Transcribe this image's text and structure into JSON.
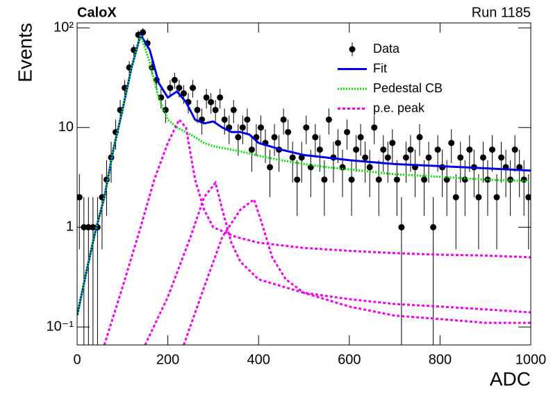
{
  "chart_data": {
    "type": "line",
    "title": "CaloX",
    "subtitle": "Run 1185",
    "x_label": "ADC",
    "y_label": "Events",
    "log_y": true,
    "xlim": [
      0,
      1000
    ],
    "ylim": [
      0.066,
      112
    ],
    "xticks": [
      0,
      200,
      400,
      600,
      800,
      1000
    ],
    "yticks": [
      {
        "value": 0.1,
        "label": "10⁻¹"
      },
      1,
      10,
      {
        "value": 100,
        "label": "10²"
      }
    ],
    "legend": "top-right",
    "series": [
      {
        "name": "Data",
        "color": "#000000",
        "kind": "points",
        "x": [
          5,
          15,
          25,
          35,
          45,
          55,
          65,
          75,
          85,
          95,
          105,
          115,
          125,
          135,
          145,
          155,
          165,
          175,
          185,
          195,
          205,
          215,
          225,
          235,
          245,
          255,
          265,
          275,
          285,
          295,
          305,
          315,
          325,
          335,
          345,
          355,
          365,
          375,
          385,
          395,
          405,
          415,
          425,
          435,
          445,
          455,
          465,
          475,
          485,
          495,
          505,
          515,
          525,
          535,
          545,
          555,
          565,
          575,
          585,
          595,
          605,
          615,
          625,
          635,
          645,
          655,
          665,
          675,
          685,
          695,
          705,
          715,
          725,
          735,
          745,
          755,
          765,
          775,
          785,
          795,
          805,
          815,
          825,
          835,
          845,
          855,
          865,
          875,
          885,
          895,
          905,
          915,
          925,
          935,
          945,
          955,
          965,
          975,
          985,
          995
        ],
        "values": [
          2,
          1,
          1,
          1,
          1,
          2,
          3,
          5,
          9,
          15,
          25,
          40,
          60,
          85,
          90,
          70,
          40,
          30,
          20,
          15,
          25,
          30,
          25,
          22,
          18,
          25,
          15,
          12,
          20,
          18,
          15,
          20,
          12,
          10,
          15,
          8,
          10,
          12,
          6,
          8,
          10,
          7,
          4,
          8,
          6,
          12,
          9,
          5,
          3,
          5,
          10,
          4,
          8,
          6,
          3,
          12,
          5,
          7,
          4,
          9,
          3,
          6,
          8,
          5,
          4,
          10,
          3,
          6,
          5,
          7,
          3,
          1,
          5,
          6,
          4,
          8,
          3,
          5,
          1,
          6,
          4,
          3,
          7,
          2,
          5,
          3,
          6,
          4,
          2,
          5,
          3,
          6,
          2,
          5,
          4,
          3,
          6,
          4,
          3,
          2
        ],
        "errors": [
          1.4,
          1,
          1,
          1,
          1,
          1.4,
          1.7,
          2.2,
          3,
          3.9,
          5,
          6.3,
          7.7,
          9.2,
          9.5,
          8.4,
          6.3,
          5.5,
          4.5,
          3.9,
          5,
          5.5,
          5,
          4.7,
          4.2,
          5,
          3.9,
          3.5,
          4.5,
          4.2,
          3.9,
          4.5,
          3.5,
          3.2,
          3.9,
          2.8,
          3.2,
          3.5,
          2.4,
          2.8,
          3.2,
          2.6,
          2,
          2.8,
          2.4,
          3.5,
          3,
          2.2,
          1.7,
          2.2,
          3.2,
          2,
          2.8,
          2.4,
          1.7,
          3.5,
          2.2,
          2.6,
          2,
          3,
          1.7,
          2.4,
          2.8,
          2.2,
          2,
          3.2,
          1.7,
          2.4,
          2.2,
          2.6,
          1.7,
          1,
          2.2,
          2.4,
          2,
          2.8,
          1.7,
          2.2,
          1,
          2.4,
          2,
          1.7,
          2.6,
          1.4,
          2.2,
          1.7,
          2.4,
          2,
          1.4,
          2.2,
          1.7,
          2.4,
          1.4,
          2.2,
          2,
          1.7,
          2.4,
          2,
          1.7,
          1.4
        ]
      },
      {
        "name": "Fit",
        "color": "#0000e6",
        "kind": "solid",
        "x": [
          0,
          20,
          40,
          60,
          80,
          100,
          120,
          140,
          160,
          180,
          200,
          220,
          240,
          260,
          280,
          300,
          320,
          340,
          360,
          380,
          400,
          450,
          500,
          550,
          600,
          650,
          700,
          750,
          800,
          850,
          900,
          950,
          1000
        ],
        "values": [
          0.13,
          0.35,
          0.9,
          2,
          6,
          15,
          40,
          85,
          60,
          28,
          20,
          23,
          18,
          12,
          11,
          11.5,
          10,
          9,
          9,
          8.5,
          7,
          6,
          5.3,
          5,
          4.7,
          4.5,
          4.3,
          4.2,
          4.1,
          4,
          3.9,
          3.8,
          3.7
        ]
      },
      {
        "name": "Pedestal CB",
        "color": "#00dd00",
        "kind": "dotted",
        "x": [
          0,
          20,
          40,
          60,
          80,
          100,
          120,
          140,
          160,
          180,
          200,
          220,
          240,
          260,
          280,
          300,
          340,
          380,
          400,
          450,
          500,
          550,
          600,
          650,
          700,
          750,
          800,
          850,
          900,
          950,
          1000
        ],
        "values": [
          0.13,
          0.35,
          0.9,
          2,
          6,
          15,
          40,
          85,
          45,
          20,
          12,
          10,
          9,
          8,
          7,
          6.5,
          6,
          5.5,
          5.2,
          4.7,
          4.3,
          4,
          3.8,
          3.6,
          3.4,
          3.3,
          3.2,
          3.1,
          3,
          2.95,
          2.9
        ]
      },
      {
        "name": "p.e. peak",
        "color": "#ee00ee",
        "kind": "dashed",
        "curves": [
          {
            "x": [
              60,
              100,
              140,
              170,
              200,
              225,
              240,
              260,
              280,
              300,
              350,
              400,
              500,
              600,
              700,
              800,
              900,
              1000
            ],
            "values": [
              0.066,
              0.25,
              1,
              3,
              7,
              12,
              10,
              3,
              1.5,
              1,
              0.8,
              0.7,
              0.62,
              0.58,
              0.55,
              0.53,
              0.52,
              0.5
            ]
          },
          {
            "x": [
              150,
              200,
              250,
              280,
              305,
              320,
              340,
              360,
              400,
              500,
              600,
              700,
              800,
              900,
              1000
            ],
            "values": [
              0.066,
              0.2,
              0.8,
              2,
              2.8,
              1.5,
              0.7,
              0.45,
              0.3,
              0.22,
              0.19,
              0.17,
              0.16,
              0.15,
              0.14
            ]
          },
          {
            "x": [
              235,
              280,
              320,
              360,
              390,
              410,
              430,
              460,
              500,
              600,
              700,
              800,
              900,
              1000
            ],
            "values": [
              0.066,
              0.25,
              0.8,
              1.5,
              1.9,
              1,
              0.5,
              0.3,
              0.22,
              0.16,
              0.13,
              0.12,
              0.11,
              0.11
            ]
          }
        ]
      }
    ]
  }
}
